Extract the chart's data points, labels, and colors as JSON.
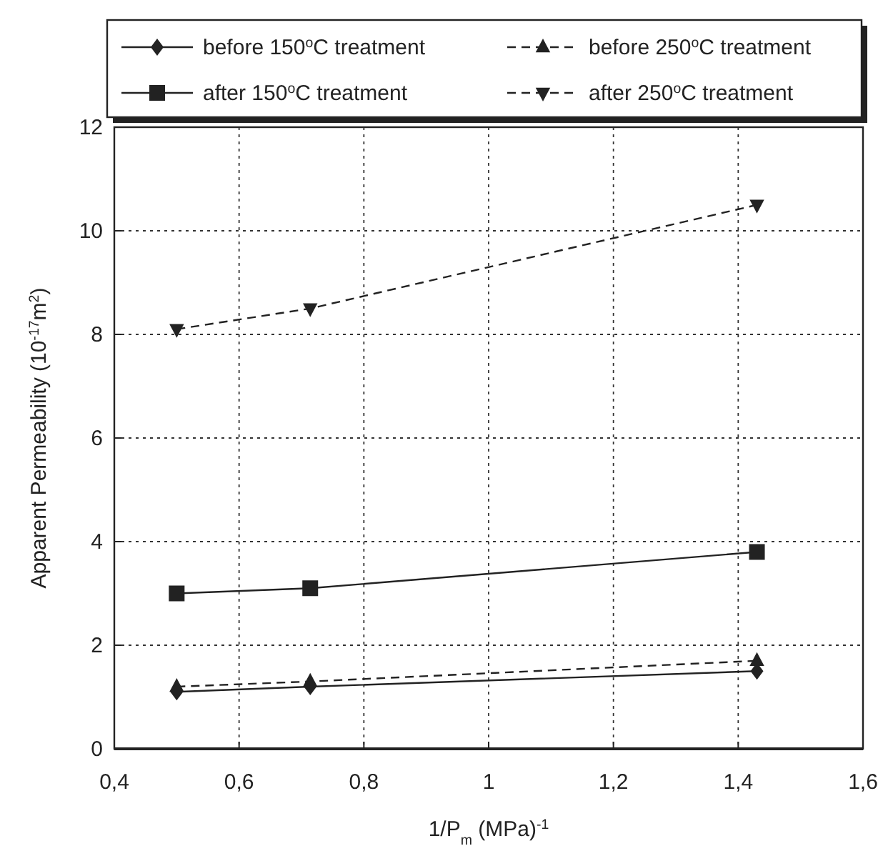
{
  "chart_data": {
    "type": "line",
    "xlabel": "1/P$_{m}$ (MPa)$^{-1}$",
    "ylabel": "Apparent Permeability (10$^{-17}$m$^{2}$)",
    "xlim": [
      0.4,
      1.6
    ],
    "xticks": [
      {
        "value": 0.4,
        "label": "0,4"
      },
      {
        "value": 0.6,
        "label": "0,6"
      },
      {
        "value": 0.8,
        "label": "0,8"
      },
      1,
      {
        "value": 1.2,
        "label": "1,2"
      },
      {
        "value": 1.4,
        "label": "1,4"
      },
      {
        "value": 1.6,
        "label": "1,6"
      }
    ],
    "ylim": [
      0,
      12
    ],
    "yticks": [
      0,
      2,
      4,
      6,
      8,
      10,
      12
    ],
    "grid": true,
    "legend": "top",
    "x": [
      0.5,
      0.714,
      1.43
    ],
    "series": [
      {
        "name": "before 150$^{o}$C treatment",
        "color": "#222222",
        "values": [
          1.1,
          1.2,
          1.5
        ],
        "marker": "diamond",
        "line_style": "solid"
      },
      {
        "name": "before 250$^{o}$C treatment",
        "color": "#222222",
        "values": [
          1.2,
          1.3,
          1.7
        ],
        "marker": "triangle",
        "line_style": "dashed"
      },
      {
        "name": "after 150$^{o}$C treatment",
        "color": "#222222",
        "values": [
          3.0,
          3.1,
          3.8
        ],
        "marker": "square",
        "line_style": "solid"
      },
      {
        "name": "after 250$^{o}$C treatment",
        "color": "#222222",
        "values": [
          8.1,
          8.5,
          10.5
        ],
        "marker": "triangle-down",
        "line_style": "dashed"
      }
    ]
  }
}
